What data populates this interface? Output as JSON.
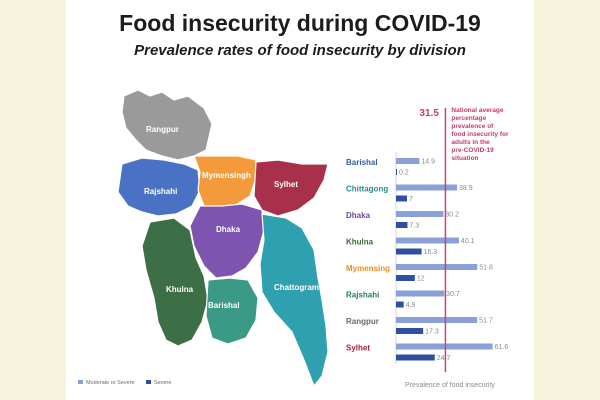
{
  "chart_data": {
    "type": "bar",
    "title": "Food insecurity during COVID-19",
    "subtitle": "Prevalence rates of food insecurity by division",
    "xlabel": "Prevalence of food insecurity",
    "categories": [
      "Barishal",
      "Chittagong",
      "Dhaka",
      "Khulna",
      "Mymensing",
      "Rajshahi",
      "Rangpur",
      "Sylhet"
    ],
    "category_colors": [
      "#2f5ea8",
      "#2a8a8a",
      "#6b4aa0",
      "#3f6b3a",
      "#f08a1c",
      "#2a7a6a",
      "#6a6a6a",
      "#b01e3a"
    ],
    "series": [
      {
        "name": "Moderate or Severe",
        "color": "#8aa0d8",
        "values": [
          14.9,
          38.9,
          30.2,
          40.1,
          51.8,
          30.7,
          51.7,
          61.6
        ]
      },
      {
        "name": "Severe",
        "color": "#2f4fa0",
        "values": [
          0.2,
          7,
          7.3,
          16.3,
          12,
          4.9,
          17.3,
          24.7
        ]
      }
    ],
    "xlim": [
      0,
      65
    ],
    "reference_line": {
      "value": 31.5,
      "label": "31.5",
      "note_lines": [
        "National average",
        "percentage",
        "prevalence of",
        "food insecurity for",
        "adults in the",
        "pre-COVID-19",
        "situation"
      ],
      "color": "#d43f73"
    }
  },
  "map": {
    "regions": [
      {
        "name": "Rangpur",
        "color": "#9a9a9a"
      },
      {
        "name": "Rajshahi",
        "color": "#4a72c4"
      },
      {
        "name": "Mymensingh",
        "color": "#f39a3a"
      },
      {
        "name": "Sylhet",
        "color": "#a8304a"
      },
      {
        "name": "Dhaka",
        "color": "#7d55b0"
      },
      {
        "name": "Khulna",
        "color": "#3d6f46"
      },
      {
        "name": "Barishal",
        "color": "#3a9a86"
      },
      {
        "name": "Chattogram",
        "color": "#2ea0b0"
      }
    ]
  }
}
